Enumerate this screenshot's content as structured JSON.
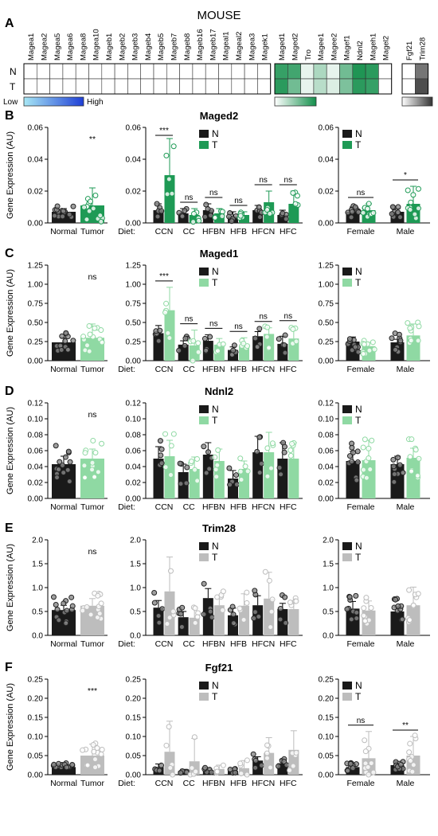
{
  "title": "MOUSE",
  "colors": {
    "N": "#1a1a1a",
    "T_green_dark": "#1e9a55",
    "T_green_light": "#8fd9a3",
    "T_gray": "#bdbdbd",
    "high": "#1f3fd6",
    "low": "#a8e8f5"
  },
  "heatmap": {
    "panel_label": "A",
    "row_labels": [
      "N",
      "T"
    ],
    "groups": [
      {
        "genes": [
          "Magea1",
          "Magea2",
          "Magea5",
          "Magea6",
          "Magea8",
          "Magea10",
          "Mageb1",
          "Mageb2",
          "Mageb3",
          "Mageb4",
          "Mageb5",
          "Mageb7",
          "Mageb8",
          "Mageb16",
          "Mageb17",
          "Mageal1",
          "Mageal2",
          "Magea3",
          "Magek1"
        ],
        "N": [
          0,
          0,
          0,
          0,
          0,
          0,
          0,
          0,
          0,
          0,
          0,
          0,
          0,
          0,
          0,
          0,
          0,
          0,
          0
        ],
        "T": [
          0,
          0,
          0,
          0,
          0,
          0,
          0,
          0,
          0,
          0,
          0,
          0,
          0,
          0,
          0,
          0,
          0,
          0,
          0
        ],
        "scale": "blue"
      },
      {
        "genes": [
          "Maged1",
          "Maged2",
          "Tro",
          "Magee1",
          "Magee2",
          "Magef1",
          "Ndnl2",
          "Mageh1",
          "Magel2"
        ],
        "N": [
          0.85,
          0.8,
          0.1,
          0.35,
          0.1,
          0.6,
          0.95,
          0.9,
          0.0
        ],
        "T": [
          0.9,
          0.6,
          0.1,
          0.3,
          0.15,
          0.55,
          0.9,
          0.85,
          0.0
        ],
        "scale": "green"
      },
      {
        "genes": [
          "Fgf21",
          "Trim28"
        ],
        "N": [
          0.0,
          0.7
        ],
        "T": [
          0.0,
          0.9
        ],
        "scale": "gray"
      }
    ],
    "legends": [
      {
        "low": "Low",
        "high": "High"
      }
    ]
  },
  "chart_data": [
    {
      "panel": "B",
      "gene": "Maged2",
      "type": "bar",
      "left": {
        "categories": [
          "Normal",
          "Tumor"
        ],
        "values": [
          0.007,
          0.011
        ],
        "err": [
          0.002,
          0.011
        ],
        "ylim": [
          0,
          0.06
        ],
        "yticks": [
          0.0,
          0.02,
          0.04,
          0.06
        ],
        "sig": [
          "",
          "**"
        ]
      },
      "middle": {
        "diet_label": "Diet:",
        "categories": [
          "CCN",
          "CC",
          "HFBN",
          "HFB",
          "HFCN",
          "HFC"
        ],
        "N": [
          0.008,
          0.006,
          0.008,
          0.004,
          0.008,
          0.005
        ],
        "T": [
          0.03,
          0.005,
          0.006,
          0.005,
          0.013,
          0.012
        ],
        "Nerr": [
          0.004,
          0.003,
          0.004,
          0.003,
          0.003,
          0.003
        ],
        "Terr": [
          0.023,
          0.004,
          0.003,
          0.002,
          0.007,
          0.008
        ],
        "ylim": [
          0,
          0.06
        ],
        "yticks": [
          0.0,
          0.02,
          0.04,
          0.06
        ],
        "sig": [
          "***",
          "ns",
          "ns",
          "ns",
          "ns",
          "ns"
        ]
      },
      "right": {
        "categories": [
          "Female",
          "Male"
        ],
        "N": [
          0.007,
          0.007
        ],
        "T": [
          0.008,
          0.012
        ],
        "Nerr": [
          0.003,
          0.002
        ],
        "Terr": [
          0.004,
          0.011
        ],
        "ylim": [
          0,
          0.06
        ],
        "yticks": [
          0.0,
          0.02,
          0.04,
          0.06
        ],
        "sig": [
          "ns",
          "*"
        ]
      },
      "legend": [
        "N",
        "T"
      ],
      "t_color": "dark"
    },
    {
      "panel": "C",
      "gene": "Maged1",
      "type": "bar",
      "left": {
        "categories": [
          "Normal",
          "Tumor"
        ],
        "values": [
          0.24,
          0.3
        ],
        "err": [
          0.06,
          0.18
        ],
        "ylim": [
          0,
          1.25
        ],
        "yticks": [
          0.0,
          0.25,
          0.5,
          0.75,
          1.0,
          1.25
        ],
        "sig": [
          "",
          "ns"
        ]
      },
      "middle": {
        "diet_label": "Diet:",
        "categories": [
          "CCN",
          "CC",
          "HFBN",
          "HFB",
          "HFCN",
          "HFC"
        ],
        "N": [
          0.36,
          0.21,
          0.26,
          0.14,
          0.32,
          0.22
        ],
        "T": [
          0.66,
          0.2,
          0.21,
          0.2,
          0.35,
          0.29
        ],
        "Nerr": [
          0.1,
          0.05,
          0.08,
          0.04,
          0.06,
          0.1
        ],
        "Terr": [
          0.3,
          0.2,
          0.08,
          0.1,
          0.08,
          0.15
        ],
        "ylim": [
          0,
          1.25
        ],
        "yticks": [
          0.0,
          0.25,
          0.5,
          0.75,
          1.0,
          1.25
        ],
        "sig": [
          "***",
          "ns",
          "ns",
          "ns",
          "ns",
          "ns"
        ]
      },
      "right": {
        "categories": [
          "Female",
          "Male"
        ],
        "N": [
          0.25,
          0.24
        ],
        "T": [
          0.19,
          0.33
        ],
        "Nerr": [
          0.06,
          0.04
        ],
        "Terr": [
          0.05,
          0.15
        ],
        "ylim": [
          0,
          1.25
        ],
        "yticks": [
          0.0,
          0.25,
          0.5,
          0.75,
          1.0,
          1.25
        ],
        "sig": [
          "",
          ""
        ]
      },
      "legend": [
        "N",
        "T"
      ],
      "t_color": "light"
    },
    {
      "panel": "D",
      "gene": "Ndnl2",
      "type": "bar",
      "left": {
        "categories": [
          "Normal",
          "Tumor"
        ],
        "values": [
          0.043,
          0.05
        ],
        "err": [
          0.01,
          0.012
        ],
        "ylim": [
          0,
          0.12
        ],
        "yticks": [
          0.0,
          0.02,
          0.04,
          0.06,
          0.08,
          0.1,
          0.12
        ],
        "sig": [
          "",
          "ns"
        ]
      },
      "middle": {
        "diet_label": "Diet:",
        "categories": [
          "CCN",
          "CC",
          "HFBN",
          "HFB",
          "HFCN",
          "HFC"
        ],
        "N": [
          0.05,
          0.033,
          0.055,
          0.025,
          0.058,
          0.05
        ],
        "T": [
          0.053,
          0.037,
          0.047,
          0.037,
          0.058,
          0.05
        ],
        "Nerr": [
          0.015,
          0.01,
          0.015,
          0.01,
          0.02,
          0.02
        ],
        "Terr": [
          0.02,
          0.015,
          0.015,
          0.01,
          0.025,
          0.02
        ],
        "ylim": [
          0,
          0.12
        ],
        "yticks": [
          0.0,
          0.02,
          0.04,
          0.06,
          0.08,
          0.1,
          0.12
        ],
        "sig": [
          "",
          "",
          "",
          "",
          "",
          ""
        ]
      },
      "right": {
        "categories": [
          "Female",
          "Male"
        ],
        "N": [
          0.047,
          0.043
        ],
        "T": [
          0.048,
          0.051
        ],
        "Nerr": [
          0.012,
          0.01
        ],
        "Terr": [
          0.025,
          0.012
        ],
        "ylim": [
          0,
          0.12
        ],
        "yticks": [
          0.0,
          0.02,
          0.04,
          0.06,
          0.08,
          0.1,
          0.12
        ],
        "sig": [
          "",
          ""
        ]
      },
      "legend": [
        "N",
        "T"
      ],
      "t_color": "light"
    },
    {
      "panel": "E",
      "gene": "Trim28",
      "type": "bar",
      "left": {
        "categories": [
          "Normal",
          "Tumor"
        ],
        "values": [
          0.53,
          0.62
        ],
        "err": [
          0.1,
          0.15
        ],
        "ylim": [
          0,
          2.0
        ],
        "yticks": [
          0.0,
          0.5,
          1.0,
          1.5,
          2.0
        ],
        "sig": [
          "",
          "ns"
        ]
      },
      "middle": {
        "diet_label": "Diet:",
        "categories": [
          "CCN",
          "CC",
          "HFBN",
          "HFB",
          "HFCN",
          "HFC"
        ],
        "N": [
          0.58,
          0.38,
          0.78,
          0.42,
          0.63,
          0.55
        ],
        "T": [
          0.92,
          0.37,
          0.63,
          0.62,
          0.77,
          0.55
        ],
        "Nerr": [
          0.15,
          0.12,
          0.2,
          0.15,
          0.2,
          0.12
        ],
        "Terr": [
          0.72,
          0.2,
          0.15,
          0.25,
          0.55,
          0.15
        ],
        "ylim": [
          0,
          2.0
        ],
        "yticks": [
          0.0,
          0.5,
          1.0,
          1.5,
          2.0
        ],
        "sig": [
          "",
          "",
          "",
          "",
          "",
          ""
        ]
      },
      "right": {
        "categories": [
          "Female",
          "Male"
        ],
        "N": [
          0.56,
          0.5
        ],
        "T": [
          0.52,
          0.63
        ],
        "Nerr": [
          0.15,
          0.1
        ],
        "Terr": [
          0.2,
          0.38
        ],
        "ylim": [
          0,
          2.0
        ],
        "yticks": [
          0.0,
          0.5,
          1.0,
          1.5,
          2.0
        ],
        "sig": [
          "",
          ""
        ]
      },
      "legend": [
        "N",
        "T"
      ],
      "t_color": "gray"
    },
    {
      "panel": "F",
      "gene": "Fgf21",
      "type": "bar",
      "left": {
        "categories": [
          "Normal",
          "Tumor"
        ],
        "values": [
          0.02,
          0.05
        ],
        "err": [
          0.01,
          0.03
        ],
        "ylim": [
          0,
          0.25
        ],
        "yticks": [
          0.0,
          0.05,
          0.1,
          0.15,
          0.2,
          0.25
        ],
        "sig": [
          "",
          "***"
        ]
      },
      "middle": {
        "diet_label": "Diet:",
        "categories": [
          "CCN",
          "CC",
          "HFBN",
          "HFB",
          "HFCN",
          "HFC"
        ],
        "N": [
          0.02,
          0.01,
          0.012,
          0.01,
          0.037,
          0.03
        ],
        "T": [
          0.06,
          0.035,
          0.015,
          0.017,
          0.057,
          0.065
        ],
        "Nerr": [
          0.008,
          0.004,
          0.005,
          0.005,
          0.01,
          0.01
        ],
        "Terr": [
          0.08,
          0.06,
          0.01,
          0.02,
          0.04,
          0.05
        ],
        "ylim": [
          0,
          0.25
        ],
        "yticks": [
          0.0,
          0.05,
          0.1,
          0.15,
          0.2,
          0.25
        ],
        "sig": [
          "",
          "",
          "",
          "",
          "",
          ""
        ]
      },
      "right": {
        "categories": [
          "Female",
          "Male"
        ],
        "N": [
          0.02,
          0.025
        ],
        "T": [
          0.043,
          0.05
        ],
        "Nerr": [
          0.008,
          0.01
        ],
        "Terr": [
          0.07,
          0.05
        ],
        "ylim": [
          0,
          0.25
        ],
        "yticks": [
          0.0,
          0.05,
          0.1,
          0.15,
          0.2,
          0.25
        ],
        "sig": [
          "ns",
          "**"
        ]
      },
      "legend": [
        "N",
        "T"
      ],
      "t_color": "gray"
    }
  ],
  "ylabel": "Gene Expression (AU)"
}
